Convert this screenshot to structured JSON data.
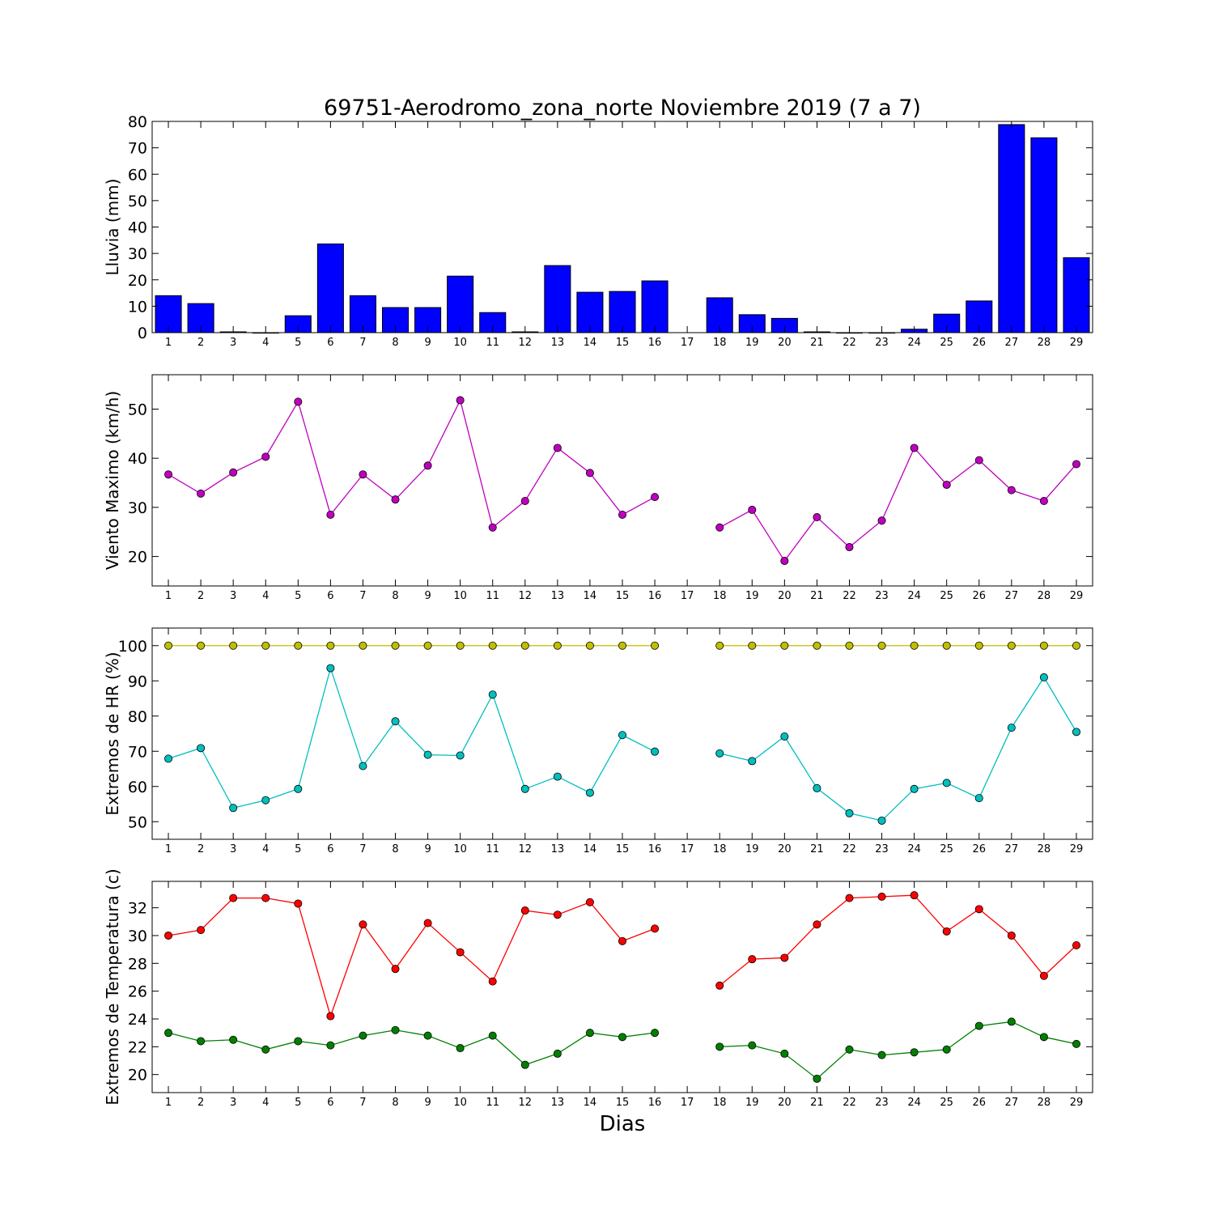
{
  "title": "69751-Aerodromo_zona_norte Noviembre 2019  (7 a 7)",
  "xlabel": "Dias",
  "chart_data": [
    {
      "type": "bar",
      "ylabel": "Lluvia (mm)",
      "ylim": [
        0,
        80
      ],
      "yticks": [
        0,
        10,
        20,
        30,
        40,
        50,
        60,
        70,
        80
      ],
      "xticks": [
        1,
        2,
        3,
        4,
        5,
        6,
        7,
        8,
        9,
        10,
        11,
        12,
        13,
        14,
        15,
        16,
        17,
        18,
        19,
        20,
        21,
        22,
        23,
        24,
        25,
        26,
        27,
        28,
        29
      ],
      "categories": [
        1,
        2,
        3,
        4,
        5,
        6,
        7,
        8,
        9,
        10,
        11,
        12,
        13,
        14,
        15,
        16,
        17,
        18,
        19,
        20,
        21,
        22,
        23,
        24,
        25,
        26,
        27,
        28,
        29
      ],
      "values": [
        14.0,
        11.0,
        0.3,
        0.0,
        6.4,
        33.6,
        14.0,
        9.5,
        9.5,
        21.4,
        7.6,
        0.3,
        25.4,
        15.3,
        15.6,
        19.6,
        null,
        13.2,
        6.8,
        5.4,
        0.3,
        0.0,
        0.0,
        1.3,
        7.0,
        12.0,
        78.8,
        73.8,
        28.4
      ],
      "color": "#0000ff"
    },
    {
      "type": "line",
      "ylabel": "Viento Maximo (km/h)",
      "ylim": [
        14,
        57
      ],
      "yticks": [
        20,
        30,
        40,
        50
      ],
      "xticks": [
        1,
        2,
        3,
        4,
        5,
        6,
        7,
        8,
        9,
        10,
        11,
        12,
        13,
        14,
        15,
        16,
        17,
        18,
        19,
        20,
        21,
        22,
        23,
        24,
        25,
        26,
        27,
        28,
        29
      ],
      "series": [
        {
          "x": [
            1,
            2,
            3,
            4,
            5,
            6,
            7,
            8,
            9,
            10,
            11,
            12,
            13,
            14,
            15,
            16,
            17,
            18,
            19,
            20,
            21,
            22,
            23,
            24,
            25,
            26,
            27,
            28,
            29
          ],
          "values": [
            36.7,
            32.8,
            37.1,
            40.3,
            51.5,
            28.5,
            36.7,
            31.6,
            38.5,
            51.8,
            25.9,
            31.3,
            42.1,
            37.0,
            28.5,
            32.1,
            null,
            25.9,
            29.5,
            19.1,
            28.0,
            21.9,
            27.3,
            42.1,
            34.6,
            39.6,
            33.5,
            31.3,
            38.8
          ],
          "color": "#bf00bf"
        }
      ]
    },
    {
      "type": "line",
      "ylabel": "Extremos de HR (%)",
      "ylim": [
        45,
        105
      ],
      "yticks": [
        50,
        60,
        70,
        80,
        90,
        100
      ],
      "xticks": [
        1,
        2,
        3,
        4,
        5,
        6,
        7,
        8,
        9,
        10,
        11,
        12,
        13,
        14,
        15,
        16,
        17,
        18,
        19,
        20,
        21,
        22,
        23,
        24,
        25,
        26,
        27,
        28,
        29
      ],
      "series": [
        {
          "x": [
            1,
            2,
            3,
            4,
            5,
            6,
            7,
            8,
            9,
            10,
            11,
            12,
            13,
            14,
            15,
            16,
            17,
            18,
            19,
            20,
            21,
            22,
            23,
            24,
            25,
            26,
            27,
            28,
            29
          ],
          "values": [
            100,
            100,
            100,
            100,
            100,
            100,
            100,
            100,
            100,
            100,
            100,
            100,
            100,
            100,
            100,
            100,
            null,
            100,
            100,
            100,
            100,
            100,
            100,
            100,
            100,
            100,
            100,
            100,
            100
          ],
          "color": "#bfbf00"
        },
        {
          "x": [
            1,
            2,
            3,
            4,
            5,
            6,
            7,
            8,
            9,
            10,
            11,
            12,
            13,
            14,
            15,
            16,
            17,
            18,
            19,
            20,
            21,
            22,
            23,
            24,
            25,
            26,
            27,
            28,
            29
          ],
          "values": [
            67.9,
            70.9,
            53.9,
            56.1,
            59.3,
            93.6,
            65.8,
            78.5,
            69.0,
            68.8,
            86.1,
            59.3,
            62.8,
            58.2,
            74.6,
            69.9,
            null,
            69.4,
            67.2,
            74.2,
            59.5,
            52.4,
            50.3,
            59.3,
            61.0,
            56.7,
            76.7,
            91.0,
            75.5
          ],
          "color": "#00bfbf"
        }
      ]
    },
    {
      "type": "line",
      "ylabel": "Extremos de Temperatura (c)",
      "ylim": [
        18.7,
        33.9
      ],
      "yticks": [
        20,
        22,
        24,
        26,
        28,
        30,
        32
      ],
      "xticks": [
        1,
        2,
        3,
        4,
        5,
        6,
        7,
        8,
        9,
        10,
        11,
        12,
        13,
        14,
        15,
        16,
        17,
        18,
        19,
        20,
        21,
        22,
        23,
        24,
        25,
        26,
        27,
        28,
        29
      ],
      "series": [
        {
          "x": [
            1,
            2,
            3,
            4,
            5,
            6,
            7,
            8,
            9,
            10,
            11,
            12,
            13,
            14,
            15,
            16,
            17,
            18,
            19,
            20,
            21,
            22,
            23,
            24,
            25,
            26,
            27,
            28,
            29
          ],
          "values": [
            30.0,
            30.4,
            32.7,
            32.7,
            32.3,
            24.2,
            30.8,
            27.6,
            30.9,
            28.8,
            26.7,
            31.8,
            31.5,
            32.4,
            29.6,
            30.5,
            null,
            26.4,
            28.3,
            28.4,
            30.8,
            32.7,
            32.8,
            32.9,
            30.3,
            31.9,
            30.0,
            27.1,
            29.3
          ],
          "color": "#ff0000"
        },
        {
          "x": [
            1,
            2,
            3,
            4,
            5,
            6,
            7,
            8,
            9,
            10,
            11,
            12,
            13,
            14,
            15,
            16,
            17,
            18,
            19,
            20,
            21,
            22,
            23,
            24,
            25,
            26,
            27,
            28,
            29
          ],
          "values": [
            23.0,
            22.4,
            22.5,
            21.8,
            22.4,
            22.1,
            22.8,
            23.2,
            22.8,
            21.9,
            22.8,
            20.7,
            21.5,
            23.0,
            22.7,
            23.0,
            null,
            22.0,
            22.1,
            21.5,
            19.7,
            21.8,
            21.4,
            21.6,
            21.8,
            23.5,
            23.8,
            22.7,
            22.2
          ],
          "color": "#008000"
        }
      ]
    }
  ]
}
